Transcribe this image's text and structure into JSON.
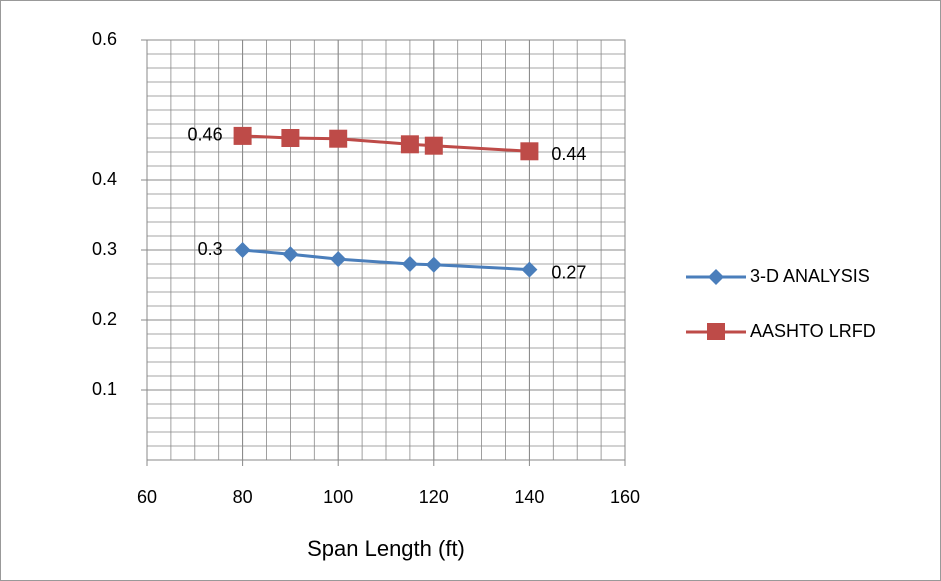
{
  "chart_data": {
    "type": "line",
    "x_label": "Span Length (ft)",
    "xlim": [
      60,
      160
    ],
    "xticks": [
      60,
      80,
      100,
      120,
      140,
      160
    ],
    "ylim": [
      0,
      0.6
    ],
    "yticks": [
      0.1,
      0.2,
      0.3,
      0.4,
      0.6
    ],
    "grid": true,
    "series": [
      {
        "name": "3-D ANALYSIS",
        "color": "#4a7ebb",
        "marker": "diamond",
        "x": [
          80,
          90,
          100,
          115,
          120,
          140
        ],
        "values": [
          0.3,
          0.294,
          0.287,
          0.28,
          0.279,
          0.272
        ],
        "value_labels": [
          "0.3",
          null,
          null,
          null,
          null,
          "0.27"
        ]
      },
      {
        "name": "AASHTO LRFD",
        "color": "#be4b48",
        "marker": "square",
        "x": [
          80,
          90,
          100,
          115,
          120,
          140
        ],
        "values": [
          0.463,
          0.46,
          0.459,
          0.451,
          0.449,
          0.441
        ],
        "value_labels": [
          "0.46",
          null,
          null,
          null,
          null,
          "0.44"
        ]
      }
    ]
  }
}
